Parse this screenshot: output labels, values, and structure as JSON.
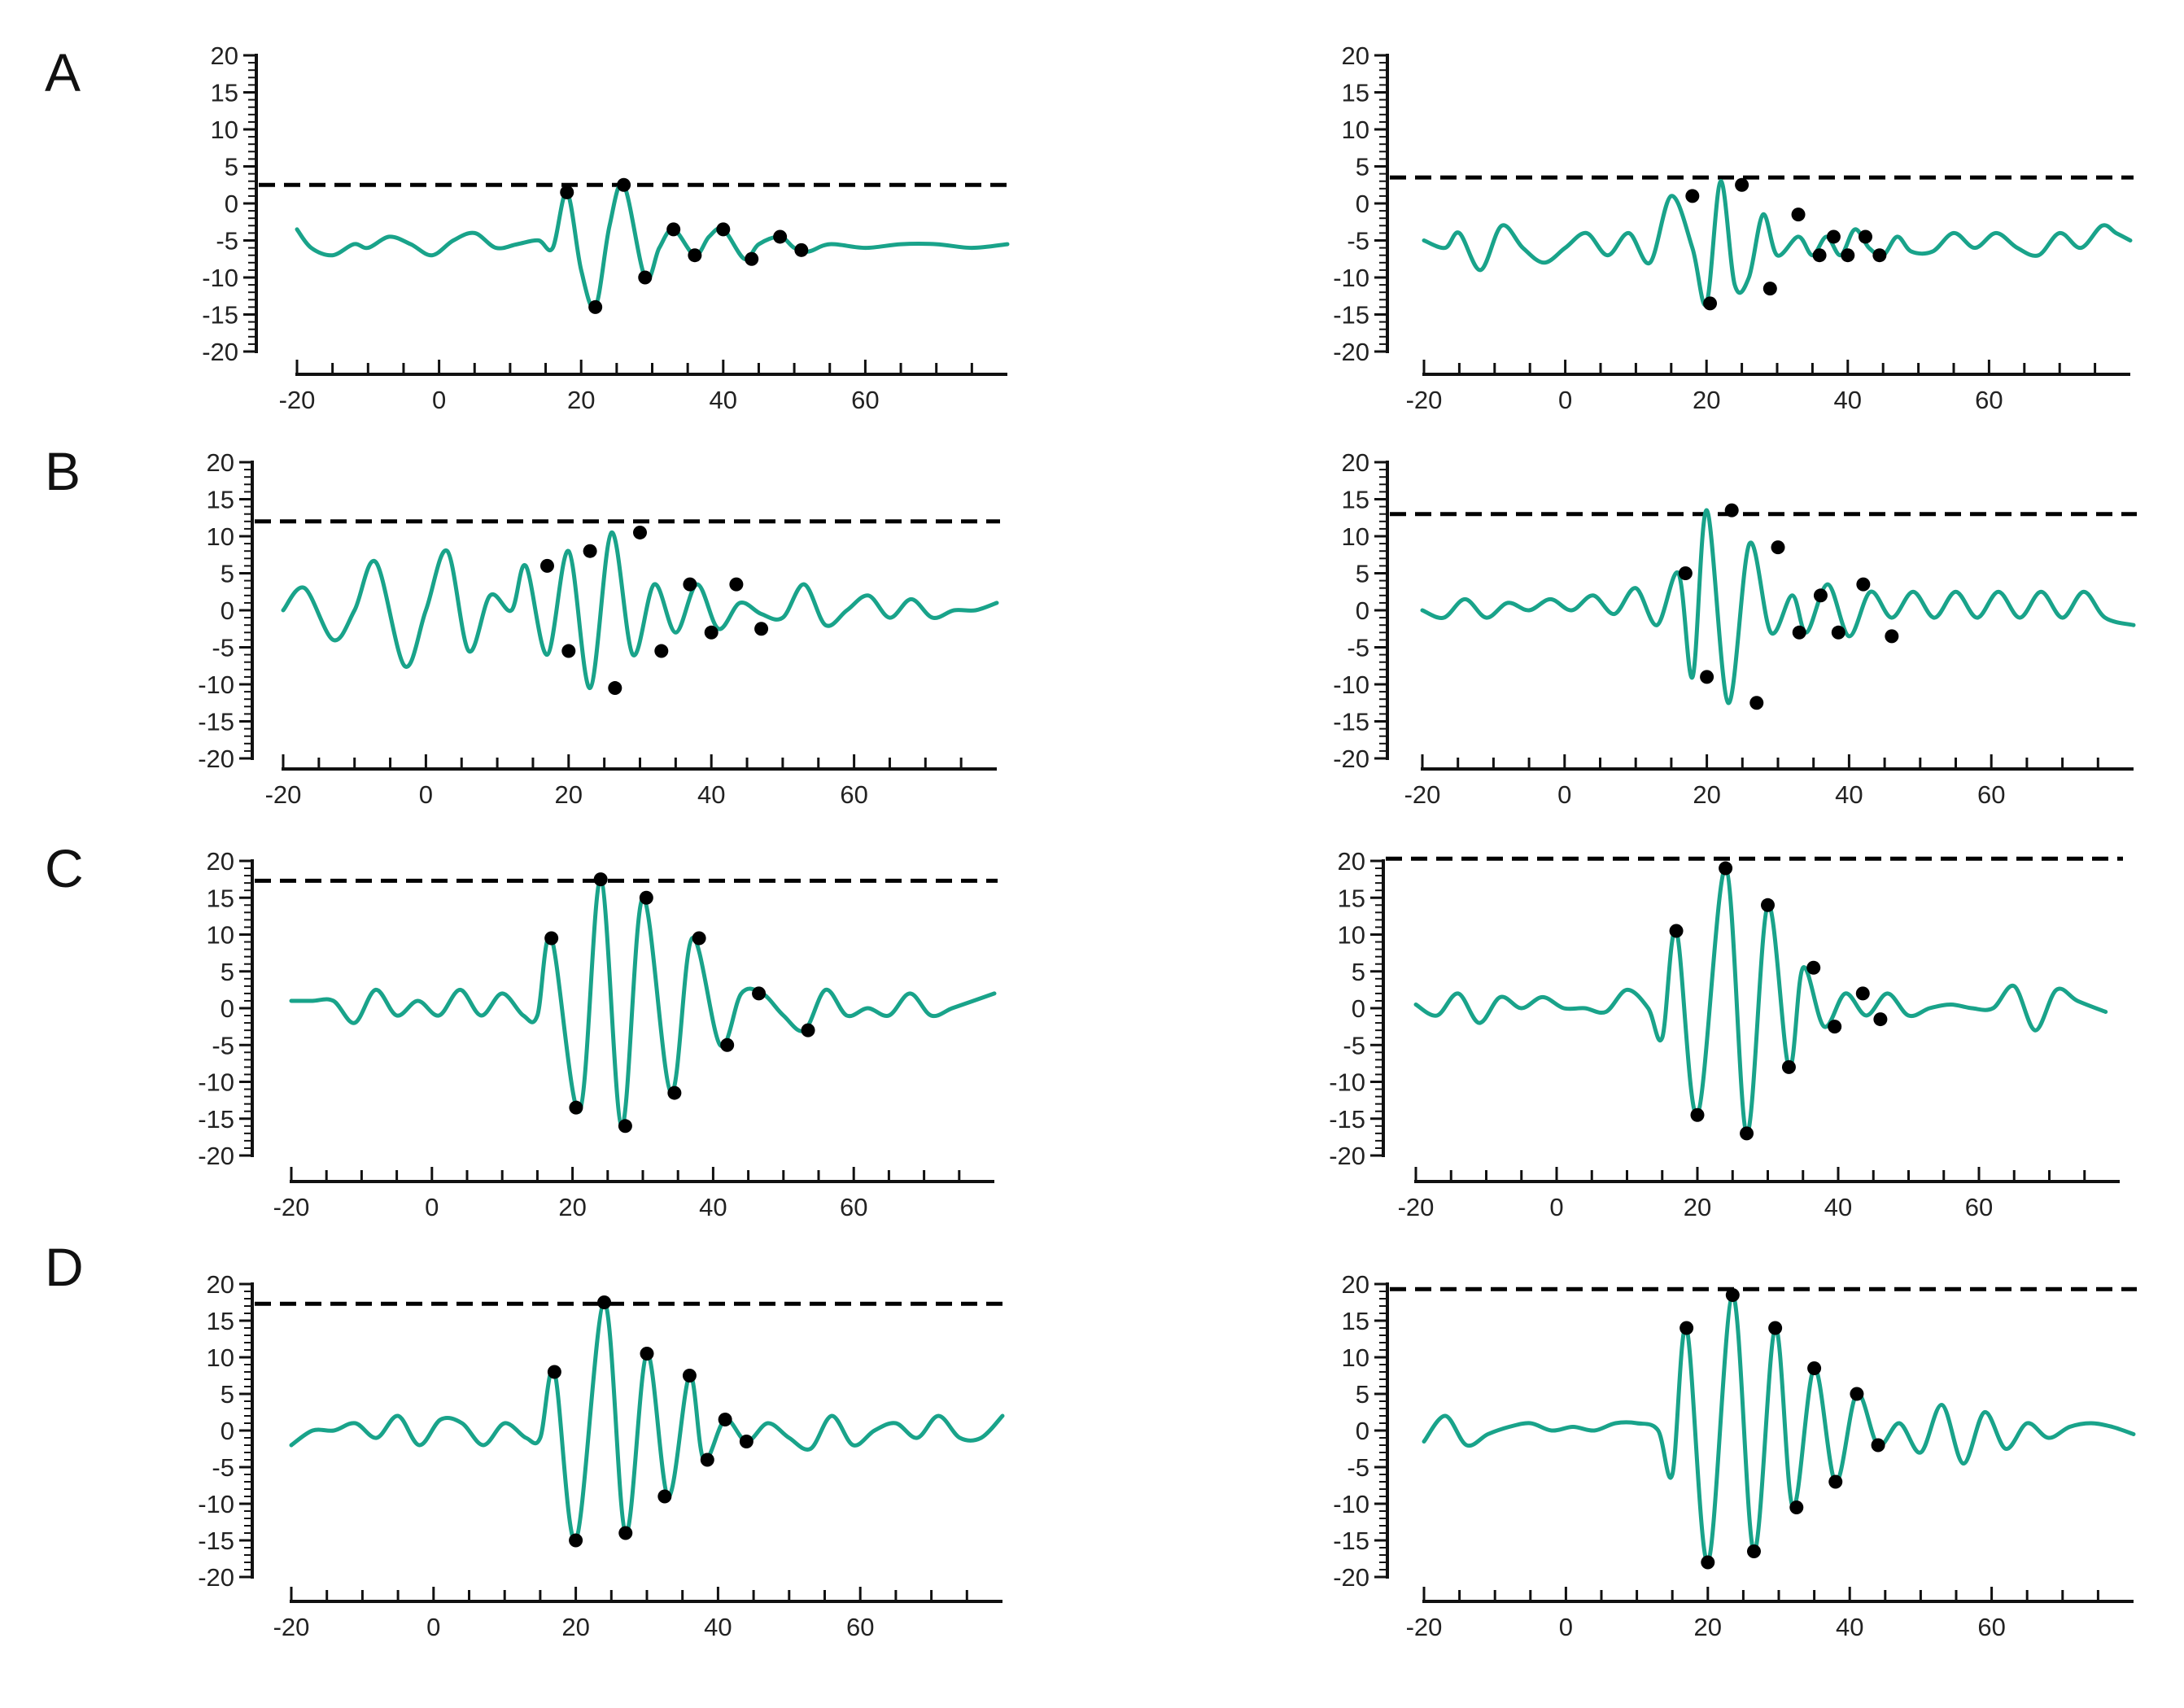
{
  "colors": {
    "signal": "#19a38a",
    "axis": "#111111",
    "threshold": "#000000",
    "marker": "#000000",
    "background": "#ffffff"
  },
  "rows": [
    "A",
    "B",
    "C",
    "D"
  ],
  "chart_data": [
    {
      "type": "line",
      "row": "A",
      "column": "left",
      "xlim": [
        -20,
        80
      ],
      "ylim": [
        -20,
        20
      ],
      "xticks": [
        -20,
        0,
        20,
        40,
        60
      ],
      "yticks": [
        20,
        15,
        10,
        5,
        0,
        -5,
        -10,
        -15,
        -20
      ],
      "threshold": 2.5,
      "x": [
        -20,
        -18,
        -15,
        -12,
        -10,
        -7,
        -4,
        -1,
        2,
        5,
        8,
        11,
        14,
        16,
        18,
        20,
        22,
        24,
        26,
        29,
        31,
        33,
        36,
        38,
        40,
        43,
        45,
        48,
        50,
        52,
        55,
        60,
        65,
        70,
        75,
        80
      ],
      "y": [
        -3.5,
        -6,
        -7,
        -5.5,
        -6,
        -4.5,
        -5.5,
        -7,
        -5,
        -4,
        -6,
        -5.5,
        -5,
        -6,
        1.5,
        -9,
        -14,
        -3,
        2.5,
        -10,
        -6,
        -3.5,
        -7,
        -4.5,
        -3.5,
        -7.5,
        -5.5,
        -4.5,
        -6,
        -6.5,
        -5.5,
        -6,
        -5.5,
        -5.5,
        -6,
        -5.5
      ],
      "markers": [
        [
          18,
          1.5
        ],
        [
          22,
          -14
        ],
        [
          26,
          2.5
        ],
        [
          29,
          -10
        ],
        [
          33,
          -3.5
        ],
        [
          36,
          -7
        ],
        [
          40,
          -3.5
        ],
        [
          44,
          -7.5
        ],
        [
          48,
          -4.5
        ],
        [
          51,
          -6.3
        ]
      ]
    },
    {
      "type": "line",
      "row": "A",
      "column": "right",
      "xlim": [
        -20,
        80
      ],
      "ylim": [
        -20,
        20
      ],
      "xticks": [
        -20,
        0,
        20,
        40,
        60
      ],
      "yticks": [
        20,
        15,
        10,
        5,
        0,
        -5,
        -10,
        -15,
        -20
      ],
      "threshold": 3.5,
      "x": [
        -20,
        -17,
        -15,
        -12,
        -9,
        -6,
        -3,
        0,
        3,
        6,
        9,
        12,
        15,
        18,
        20,
        22,
        24,
        26,
        28,
        30,
        33,
        35,
        37,
        39,
        41,
        43,
        45,
        47,
        49,
        52,
        55,
        58,
        61,
        64,
        67,
        70,
        73,
        76,
        78,
        80
      ],
      "y": [
        -5,
        -6,
        -4,
        -9,
        -3,
        -6,
        -8,
        -6,
        -4,
        -7,
        -4,
        -8,
        1,
        -6,
        -13.5,
        3,
        -11,
        -10,
        -1.5,
        -7,
        -4.5,
        -7,
        -4.5,
        -7,
        -3.5,
        -6,
        -7,
        -4.5,
        -6.5,
        -6.5,
        -4,
        -6,
        -4,
        -6,
        -7,
        -4,
        -6,
        -3,
        -4,
        -5
      ],
      "markers": [
        [
          18,
          1
        ],
        [
          20.5,
          -13.5
        ],
        [
          25,
          2.5
        ],
        [
          29,
          -11.5
        ],
        [
          33,
          -1.5
        ],
        [
          36,
          -7
        ],
        [
          38,
          -4.5
        ],
        [
          40,
          -7
        ],
        [
          42.5,
          -4.5
        ],
        [
          44.5,
          -7
        ]
      ]
    },
    {
      "type": "line",
      "row": "B",
      "column": "left",
      "xlim": [
        -20,
        80
      ],
      "ylim": [
        -20,
        20
      ],
      "xticks": [
        -20,
        0,
        20,
        40,
        60
      ],
      "yticks": [
        20,
        15,
        10,
        5,
        0,
        -5,
        -10,
        -15,
        -20
      ],
      "threshold": 12,
      "x": [
        -20,
        -17,
        -13,
        -10,
        -7,
        -3,
        0,
        3,
        6,
        9,
        12,
        14,
        17,
        20,
        23,
        26,
        29,
        32,
        35,
        38,
        41,
        44,
        47,
        50,
        53,
        56,
        59,
        62,
        65,
        68,
        71,
        74,
        77,
        80
      ],
      "y": [
        0,
        3,
        -4,
        0,
        6.5,
        -7.5,
        0,
        8,
        -5.5,
        2,
        0,
        6,
        -6,
        8,
        -10.5,
        10.5,
        -6,
        3.5,
        -3,
        3.5,
        -2.5,
        1,
        -0.5,
        -1,
        3.5,
        -2,
        0,
        2,
        -1,
        1.5,
        -1,
        0,
        0,
        1
      ],
      "markers": [
        [
          17,
          6
        ],
        [
          20,
          -5.5
        ],
        [
          23,
          8
        ],
        [
          26.5,
          -10.5
        ],
        [
          30,
          10.5
        ],
        [
          33,
          -5.5
        ],
        [
          37,
          3.5
        ],
        [
          40,
          -3
        ],
        [
          43.5,
          3.5
        ],
        [
          47,
          -2.5
        ]
      ]
    },
    {
      "type": "line",
      "row": "B",
      "column": "right",
      "xlim": [
        -20,
        80
      ],
      "ylim": [
        -20,
        20
      ],
      "xticks": [
        -20,
        0,
        20,
        40,
        60
      ],
      "yticks": [
        20,
        15,
        10,
        5,
        0,
        -5,
        -10,
        -15,
        -20
      ],
      "threshold": 13,
      "x": [
        -20,
        -17,
        -14,
        -11,
        -8,
        -5,
        -2,
        1,
        4,
        7,
        10,
        13,
        16,
        18,
        20,
        23,
        26,
        29,
        32,
        34,
        37,
        40,
        43,
        46,
        49,
        52,
        55,
        58,
        61,
        64,
        67,
        70,
        73,
        76,
        80
      ],
      "y": [
        0,
        -1,
        1.5,
        -1,
        1,
        0,
        1.5,
        0,
        2,
        -0.5,
        3,
        -2,
        5,
        -9,
        13.5,
        -12.5,
        9,
        -3,
        2,
        -3,
        3.5,
        -3.5,
        2.5,
        -1,
        2.5,
        -1,
        2.5,
        -1,
        2.5,
        -1,
        2.5,
        -1,
        2.5,
        -1,
        -2
      ],
      "markers": [
        [
          17,
          5
        ],
        [
          20,
          -9
        ],
        [
          23.5,
          13.5
        ],
        [
          27,
          -12.5
        ],
        [
          30,
          8.5
        ],
        [
          33,
          -3
        ],
        [
          36,
          2
        ],
        [
          38.5,
          -3
        ],
        [
          42,
          3.5
        ],
        [
          46,
          -3.5
        ]
      ]
    },
    {
      "type": "line",
      "row": "C",
      "column": "left",
      "xlim": [
        -20,
        80
      ],
      "ylim": [
        -20,
        20
      ],
      "xticks": [
        -20,
        0,
        20,
        40,
        60
      ],
      "yticks": [
        20,
        15,
        10,
        5,
        0,
        -5,
        -10,
        -15,
        -20
      ],
      "threshold": 17.3,
      "x": [
        -20,
        -17,
        -14,
        -11,
        -8,
        -5,
        -2,
        1,
        4,
        7,
        10,
        13,
        15,
        17,
        21,
        24,
        27,
        30,
        34,
        37,
        41,
        44,
        47,
        50,
        53,
        56,
        59,
        62,
        65,
        68,
        71,
        74,
        77,
        80
      ],
      "y": [
        1,
        1,
        1,
        -2,
        2.5,
        -1,
        1,
        -1,
        2.5,
        -1,
        2,
        -1,
        -1,
        9.5,
        -14,
        17.5,
        -16,
        15,
        -11.5,
        9.5,
        -5,
        2,
        2,
        -1,
        -3,
        2.5,
        -1,
        0,
        -1,
        2,
        -1,
        0,
        1,
        2
      ],
      "markers": [
        [
          17,
          9.5
        ],
        [
          20.5,
          -13.5
        ],
        [
          24,
          17.5
        ],
        [
          27.5,
          -16
        ],
        [
          30.5,
          15
        ],
        [
          34.5,
          -11.5
        ],
        [
          38,
          9.5
        ],
        [
          42,
          -5
        ],
        [
          46.5,
          2
        ],
        [
          53.5,
          -3
        ]
      ]
    },
    {
      "type": "line",
      "row": "C",
      "column": "right",
      "xlim": [
        -20,
        80
      ],
      "ylim": [
        -20,
        20
      ],
      "xticks": [
        -20,
        0,
        20,
        40,
        60
      ],
      "yticks": [
        20,
        15,
        10,
        5,
        0,
        -5,
        -10,
        -15,
        -20
      ],
      "threshold": 20.3,
      "x": [
        -20,
        -17,
        -14,
        -11,
        -8,
        -5,
        -2,
        1,
        4,
        7,
        10,
        13,
        15,
        17,
        20,
        24,
        27,
        30,
        33,
        35,
        38,
        41,
        44,
        47,
        50,
        53,
        56,
        59,
        62,
        65,
        68,
        71,
        74,
        78
      ],
      "y": [
        0.5,
        -1,
        2,
        -2,
        1.5,
        0,
        1.5,
        0,
        0,
        -0.5,
        2.5,
        0,
        -4,
        10.5,
        -14.5,
        19,
        -17,
        14,
        -8,
        5.5,
        -2.5,
        2,
        -1,
        2,
        -1,
        0,
        0.5,
        0,
        0,
        3,
        -3,
        2.5,
        1,
        -0.5
      ],
      "markers": [
        [
          17,
          10.5
        ],
        [
          20,
          -14.5
        ],
        [
          24,
          19
        ],
        [
          27,
          -17
        ],
        [
          30,
          14
        ],
        [
          33,
          -8
        ],
        [
          36.5,
          5.5
        ],
        [
          39.5,
          -2.5
        ],
        [
          43.5,
          2
        ],
        [
          46,
          -1.5
        ]
      ]
    },
    {
      "type": "line",
      "row": "D",
      "column": "left",
      "xlim": [
        -20,
        80
      ],
      "ylim": [
        -20,
        20
      ],
      "xticks": [
        -20,
        0,
        20,
        40,
        60
      ],
      "yticks": [
        20,
        15,
        10,
        5,
        0,
        -5,
        -10,
        -15,
        -20
      ],
      "threshold": 17.3,
      "x": [
        -20,
        -17,
        -14,
        -11,
        -8,
        -5,
        -2,
        1,
        4,
        7,
        10,
        13,
        15,
        17,
        20,
        24,
        27,
        30,
        33,
        36,
        38,
        41,
        44,
        47,
        50,
        53,
        56,
        59,
        62,
        65,
        68,
        71,
        74,
        77,
        80
      ],
      "y": [
        -2,
        0,
        0,
        1,
        -1,
        2,
        -2,
        1.5,
        1,
        -2,
        1,
        -1,
        -1,
        8,
        -15,
        17.5,
        -14,
        10.5,
        -9,
        7.5,
        -4,
        1.5,
        -1.5,
        1,
        -1,
        -2.5,
        2,
        -2,
        0,
        1,
        -1,
        2,
        -1,
        -1,
        2
      ],
      "markers": [
        [
          17,
          8
        ],
        [
          20,
          -15
        ],
        [
          24,
          17.5
        ],
        [
          27,
          -14
        ],
        [
          30,
          10.5
        ],
        [
          32.5,
          -9
        ],
        [
          36,
          7.5
        ],
        [
          38.5,
          -4
        ],
        [
          41,
          1.5
        ],
        [
          44,
          -1.5
        ]
      ]
    },
    {
      "type": "line",
      "row": "D",
      "column": "right",
      "xlim": [
        -20,
        80
      ],
      "ylim": [
        -20,
        20
      ],
      "xticks": [
        -20,
        0,
        20,
        40,
        60
      ],
      "yticks": [
        20,
        15,
        10,
        5,
        0,
        -5,
        -10,
        -15,
        -20
      ],
      "threshold": 19.3,
      "x": [
        -20,
        -17,
        -14,
        -11,
        -8,
        -5,
        -2,
        1,
        4,
        7,
        10,
        13,
        15,
        17,
        20,
        23.5,
        26.5,
        29.5,
        32,
        35,
        38,
        41,
        44,
        47,
        50,
        53,
        56,
        59,
        62,
        65,
        68,
        71,
        74,
        77,
        80
      ],
      "y": [
        -1.5,
        2,
        -2,
        -0.5,
        0.5,
        1,
        0,
        0.5,
        0,
        1,
        1,
        0,
        -6,
        14,
        -18,
        18.5,
        -16.5,
        14,
        -10.5,
        8.5,
        -7,
        5,
        -2,
        1,
        -3,
        3.5,
        -4.5,
        2.5,
        -2.5,
        1,
        -1,
        0.5,
        1,
        0.5,
        -0.5
      ],
      "markers": [
        [
          17,
          14
        ],
        [
          20,
          -18
        ],
        [
          23.5,
          18.5
        ],
        [
          26.5,
          -16.5
        ],
        [
          29.5,
          14
        ],
        [
          32.5,
          -10.5
        ],
        [
          35,
          8.5
        ],
        [
          38,
          -7
        ],
        [
          41,
          5
        ],
        [
          44,
          -2
        ]
      ]
    }
  ]
}
